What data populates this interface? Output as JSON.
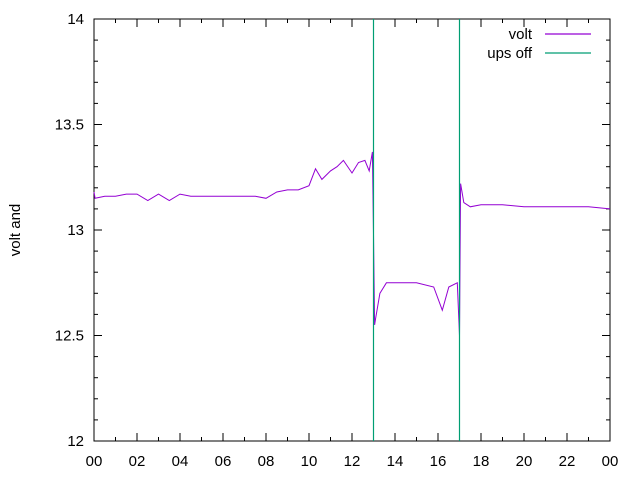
{
  "chart_data": {
    "type": "line",
    "title": "",
    "xlabel": "",
    "ylabel": "volt and",
    "xlim": [
      0,
      24
    ],
    "ylim": [
      12,
      14
    ],
    "x_ticks": [
      "00",
      "02",
      "04",
      "06",
      "08",
      "10",
      "12",
      "14",
      "16",
      "18",
      "20",
      "22",
      "00"
    ],
    "y_ticks": [
      "12",
      "12.5",
      "13",
      "13.5",
      "14"
    ],
    "grid": false,
    "legend_position": "top-right",
    "series": [
      {
        "name": "volt",
        "color": "#9400d3",
        "x": [
          0,
          0.05,
          0.5,
          1,
          1.5,
          2,
          2.5,
          3,
          3.5,
          4,
          4.5,
          5,
          6,
          7,
          7.5,
          8,
          8.5,
          9,
          9.5,
          10,
          10.3,
          10.6,
          11,
          11.3,
          11.6,
          12,
          12.3,
          12.6,
          12.8,
          12.95,
          13.0,
          13.05,
          13.1,
          13.3,
          13.6,
          14,
          15,
          15.8,
          16.2,
          16.5,
          16.9,
          17.0,
          17.05,
          17.2,
          17.5,
          18,
          19,
          20,
          21,
          22,
          23,
          24
        ],
        "y": [
          13.18,
          13.15,
          13.16,
          13.16,
          13.17,
          13.17,
          13.14,
          13.17,
          13.14,
          13.17,
          13.16,
          13.16,
          13.16,
          13.16,
          13.16,
          13.15,
          13.18,
          13.19,
          13.19,
          13.21,
          13.29,
          13.24,
          13.28,
          13.3,
          13.33,
          13.27,
          13.32,
          13.33,
          13.28,
          13.37,
          12.98,
          12.55,
          12.58,
          12.7,
          12.75,
          12.75,
          12.75,
          12.73,
          12.62,
          12.73,
          12.75,
          12.5,
          13.22,
          13.13,
          13.11,
          13.12,
          13.12,
          13.11,
          13.11,
          13.11,
          13.11,
          13.1
        ]
      },
      {
        "name": "ups off",
        "color": "#009e73",
        "vertical_lines_x": [
          13.0,
          17.0
        ]
      }
    ]
  }
}
